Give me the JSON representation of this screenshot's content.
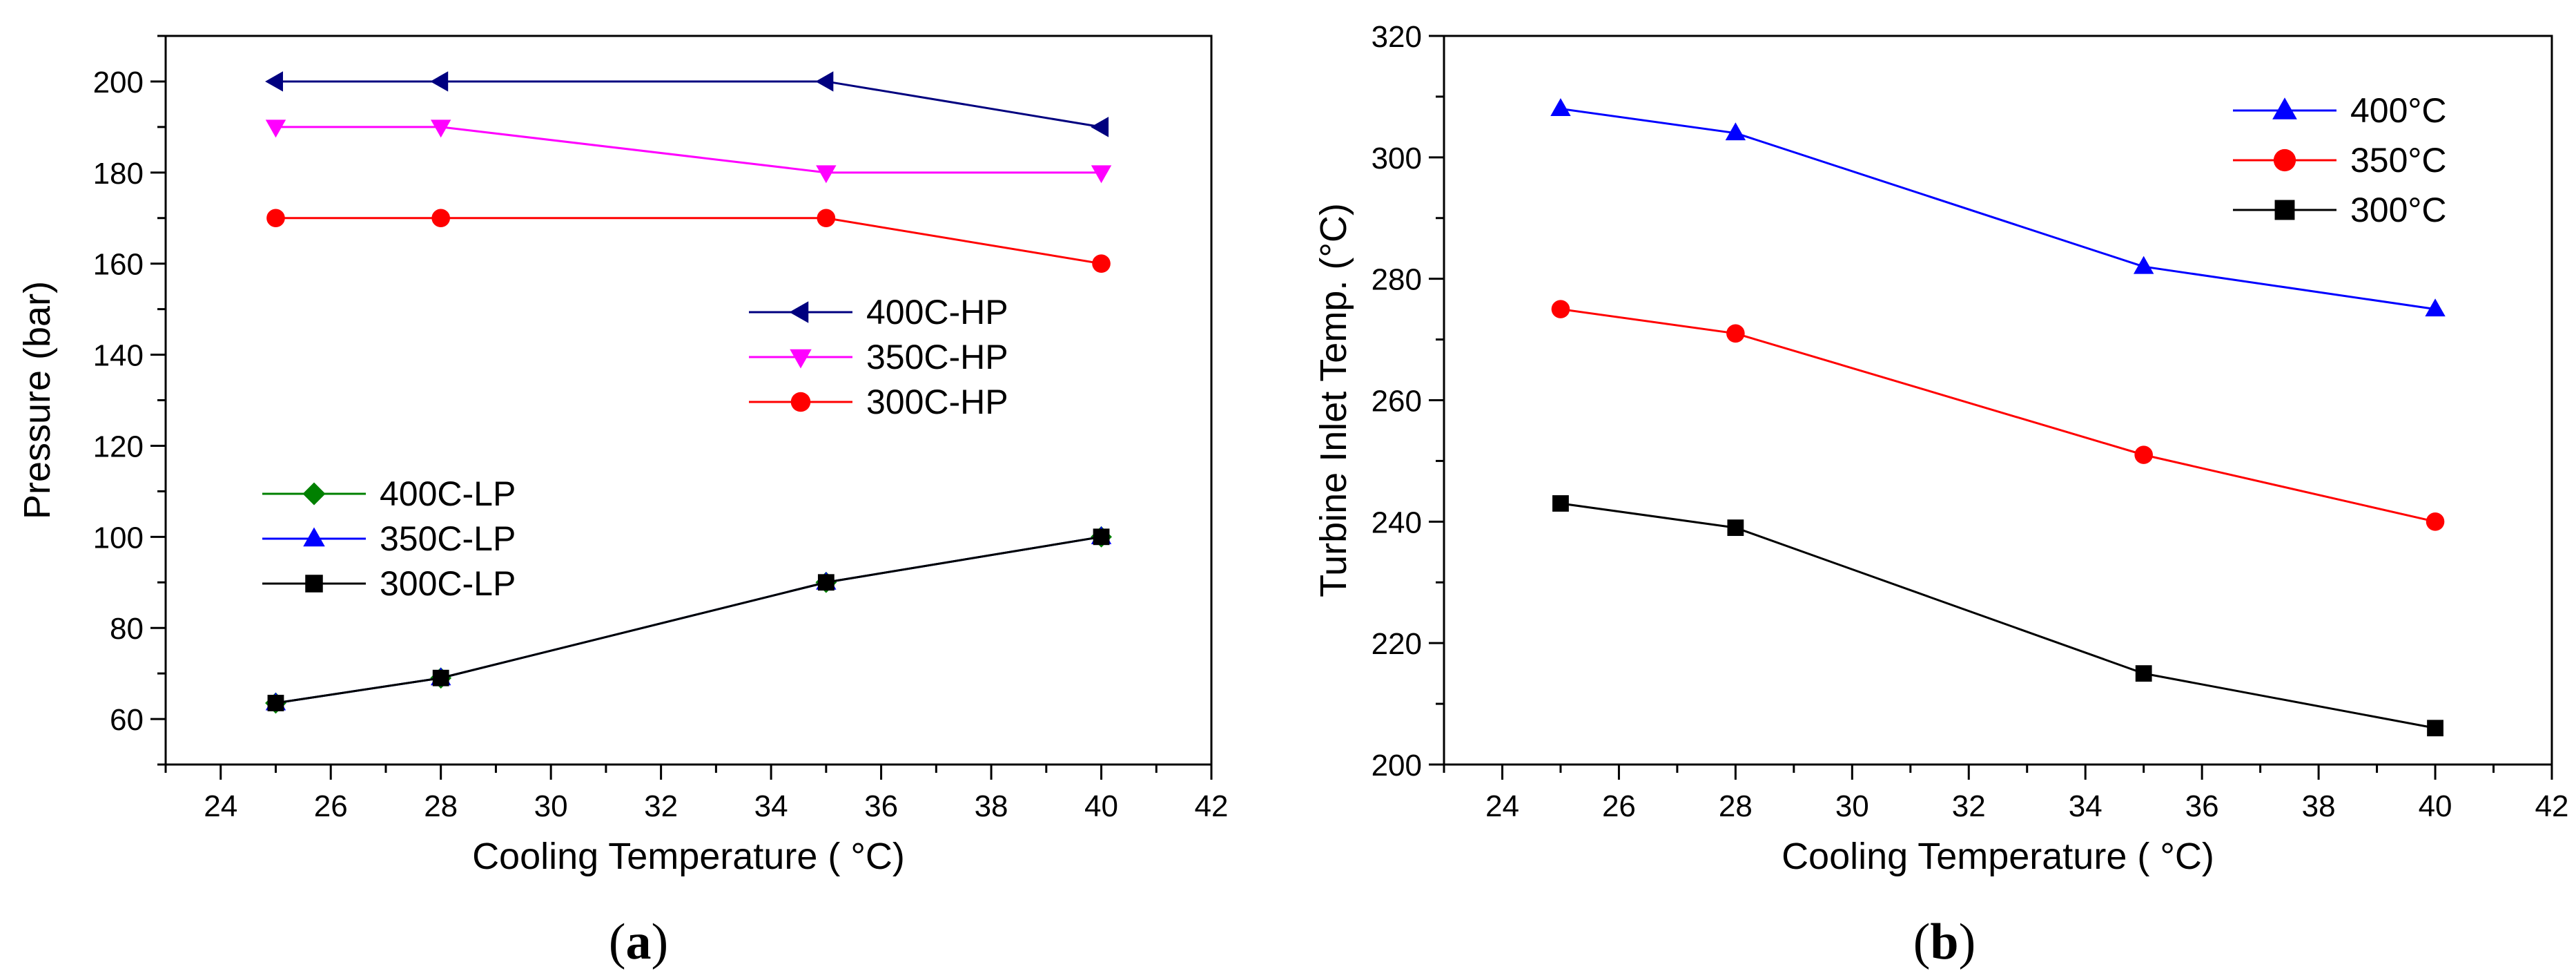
{
  "chart_data": [
    {
      "type": "line",
      "caption": "a",
      "xlabel": "Cooling Temperature ( °C)",
      "ylabel": "Pressure (bar)",
      "xlim": [
        23,
        42
      ],
      "ylim": [
        50,
        210
      ],
      "xticks": [
        24,
        26,
        28,
        30,
        32,
        34,
        36,
        38,
        40,
        42
      ],
      "yticks": [
        60,
        80,
        100,
        120,
        140,
        160,
        180,
        200
      ],
      "grid": false,
      "legend_groups": [
        {
          "position": "middle-right",
          "series": [
            "400C-HP",
            "350C-HP",
            "300C-HP"
          ]
        },
        {
          "position": "lower-left",
          "series": [
            "400C-LP",
            "350C-LP",
            "300C-LP"
          ]
        }
      ],
      "x": [
        25,
        28,
        35,
        40
      ],
      "series": [
        {
          "name": "400C-HP",
          "values": [
            200,
            200,
            200,
            190
          ],
          "color": "#00007f",
          "marker": "triangle-left"
        },
        {
          "name": "350C-HP",
          "values": [
            190,
            190,
            180,
            180
          ],
          "color": "#ff00ff",
          "marker": "triangle-down"
        },
        {
          "name": "300C-HP",
          "values": [
            170,
            170,
            170,
            160
          ],
          "color": "#ff0000",
          "marker": "circle"
        },
        {
          "name": "400C-LP",
          "values": [
            63.5,
            69,
            90,
            100
          ],
          "color": "#008000",
          "marker": "diamond"
        },
        {
          "name": "350C-LP",
          "values": [
            63.5,
            69,
            90,
            100
          ],
          "color": "#0000ff",
          "marker": "triangle-up"
        },
        {
          "name": "300C-LP",
          "values": [
            63.5,
            69,
            90,
            100
          ],
          "color": "#000000",
          "marker": "square"
        }
      ]
    },
    {
      "type": "line",
      "caption": "b",
      "xlabel": "Cooling Temperature ( °C)",
      "ylabel": "Turbine Inlet Temp. (°C)",
      "xlim": [
        23,
        42
      ],
      "ylim": [
        200,
        320
      ],
      "xticks": [
        24,
        26,
        28,
        30,
        32,
        34,
        36,
        38,
        40,
        42
      ],
      "yticks": [
        200,
        220,
        240,
        260,
        280,
        300,
        320
      ],
      "grid": false,
      "legend_groups": [
        {
          "position": "top-right",
          "series": [
            "400°C",
            "350°C",
            "300°C"
          ]
        }
      ],
      "x": [
        25,
        28,
        35,
        40
      ],
      "series": [
        {
          "name": "400°C",
          "values": [
            308,
            304,
            282,
            275
          ],
          "color": "#0000ff",
          "marker": "triangle-up"
        },
        {
          "name": "350°C",
          "values": [
            275,
            271,
            251,
            240
          ],
          "color": "#ff0000",
          "marker": "circle"
        },
        {
          "name": "300°C",
          "values": [
            243,
            239,
            215,
            206
          ],
          "color": "#000000",
          "marker": "square"
        }
      ]
    }
  ]
}
